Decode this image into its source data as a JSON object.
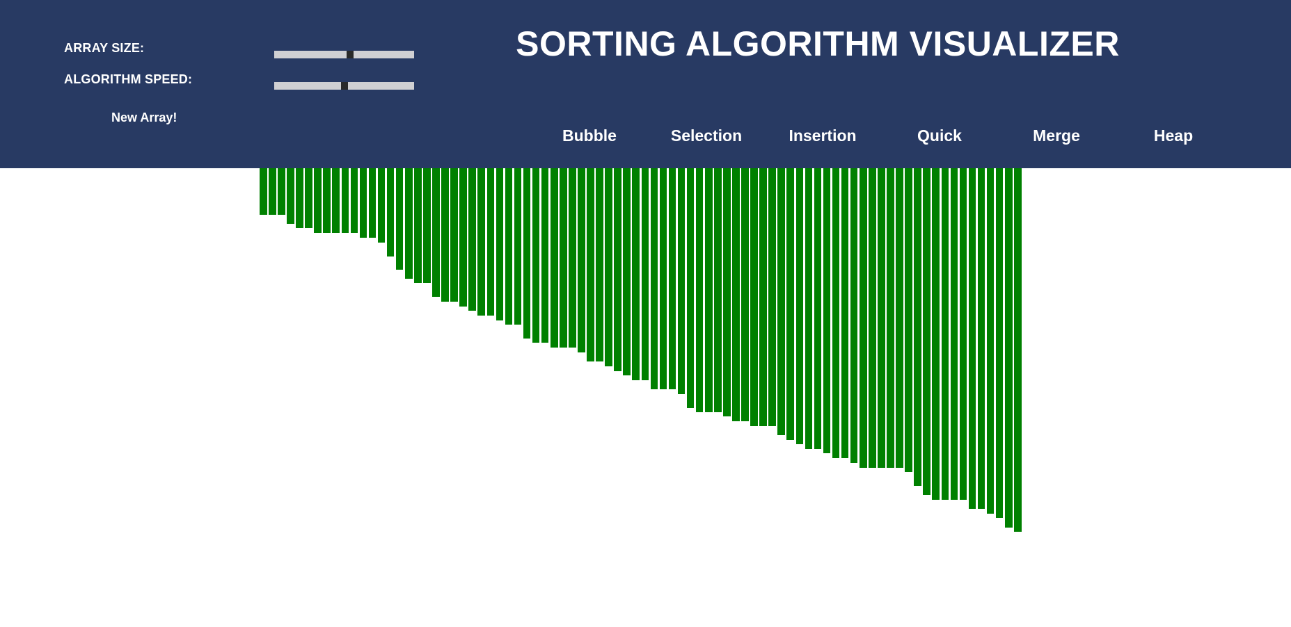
{
  "controls": {
    "array_size_label": "ARRAY SIZE:",
    "array_size_value": 0.54,
    "speed_label": "ALGORITHM SPEED:",
    "speed_value": 0.5,
    "new_array_label": "New Array!"
  },
  "title": "SORTING ALGORITHM VISUALIZER",
  "algorithms": [
    "Bubble",
    "Selection",
    "Insertion",
    "Quick",
    "Merge",
    "Heap"
  ],
  "colors": {
    "header_bg": "#283a63",
    "bar": "#008000",
    "slider_track": "#d0d0d3",
    "slider_thumb": "#2a2a2a"
  },
  "array": [
    67,
    67,
    67,
    80,
    86,
    86,
    93,
    93,
    93,
    93,
    93,
    100,
    100,
    107,
    127,
    146,
    159,
    165,
    165,
    185,
    192,
    192,
    199,
    205,
    212,
    212,
    219,
    225,
    225,
    245,
    251,
    251,
    258,
    258,
    258,
    265,
    278,
    278,
    285,
    292,
    298,
    305,
    305,
    318,
    318,
    318,
    325,
    345,
    351,
    351,
    351,
    357,
    364,
    364,
    371,
    371,
    371,
    384,
    391,
    397,
    404,
    404,
    410,
    417,
    417,
    424,
    431,
    431,
    431,
    431,
    431,
    437,
    457,
    470,
    477,
    477,
    477,
    477,
    490,
    490,
    497,
    503,
    517,
    523
  ]
}
